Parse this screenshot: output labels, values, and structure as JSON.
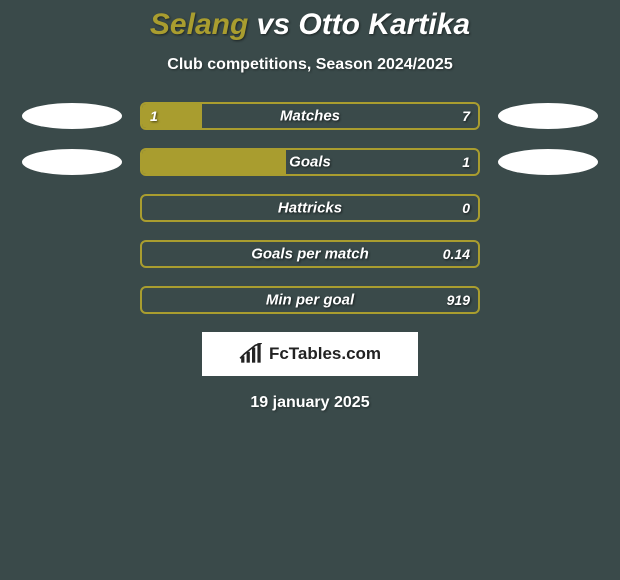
{
  "title": {
    "player1": "Selang",
    "vs": "vs",
    "player2": "Otto Kartika",
    "player1_color": "#a99d2f",
    "vs_color": "#ffffff",
    "player2_color": "#ffffff",
    "fontsize": 30
  },
  "subtitle": "Club competitions, Season 2024/2025",
  "background_color": "#3a4a4a",
  "bar_border_color": "#a99d2f",
  "bar_fill_color": "#a99d2f",
  "avatar_color": "#ffffff",
  "rows": [
    {
      "label": "Matches",
      "left_val": "1",
      "right_val": "7",
      "fill_pct": 18,
      "show_avatars": true
    },
    {
      "label": "Goals",
      "left_val": "",
      "right_val": "1",
      "fill_pct": 43,
      "show_avatars": true
    },
    {
      "label": "Hattricks",
      "left_val": "",
      "right_val": "0",
      "fill_pct": 0,
      "show_avatars": false
    },
    {
      "label": "Goals per match",
      "left_val": "",
      "right_val": "0.14",
      "fill_pct": 0,
      "show_avatars": false
    },
    {
      "label": "Min per goal",
      "left_val": "",
      "right_val": "919",
      "fill_pct": 0,
      "show_avatars": false
    }
  ],
  "brand": {
    "text_prefix": "Fc",
    "text_suffix": "Tables.com"
  },
  "date": "19 january 2025"
}
